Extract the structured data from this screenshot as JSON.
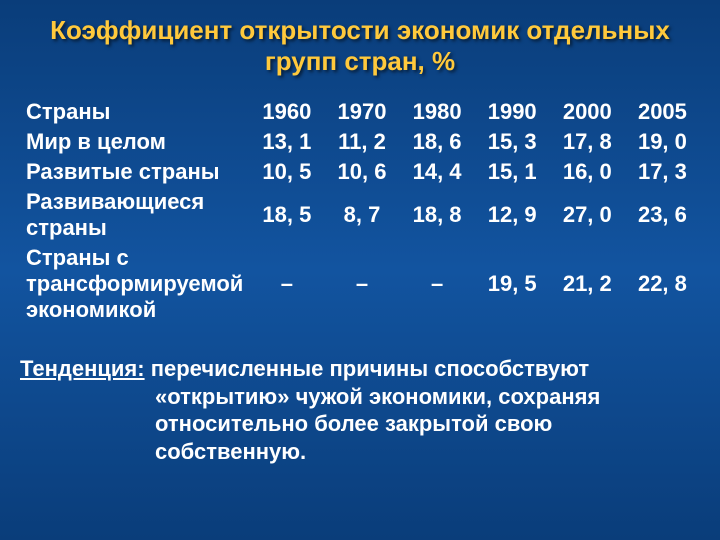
{
  "title_line1": "Коэффициент открытости экономик отдельных",
  "title_line2": "групп стран, %",
  "table": {
    "header": [
      "Страны",
      "1960",
      "1970",
      "1980",
      "1990",
      "2000",
      "2005"
    ],
    "rows": [
      [
        "Мир в целом",
        "13, 1",
        "11, 2",
        "18, 6",
        "15, 3",
        "17, 8",
        "19, 0"
      ],
      [
        "Развитые страны",
        "10, 5",
        "10, 6",
        "14, 4",
        "15, 1",
        "16, 0",
        "17, 3"
      ],
      [
        "Развивающиеся страны",
        "18, 5",
        "8, 7",
        "18, 8",
        "12, 9",
        "27, 0",
        "23, 6"
      ],
      [
        "Страны с трансформируемой экономикой",
        "–",
        "–",
        "–",
        "19, 5",
        "21, 2",
        "22, 8"
      ]
    ]
  },
  "footer": {
    "label": "Тенденция:",
    "text1": " перечисленные причины способствуют",
    "text2": "«открытию» чужой экономики, сохраняя",
    "text3": "относительно более закрытой свою",
    "text4": "собственную."
  },
  "colors": {
    "title": "#ffc93c",
    "text": "#ffffff",
    "bg_top": "#0a3d7a",
    "bg_mid": "#1254a0"
  }
}
